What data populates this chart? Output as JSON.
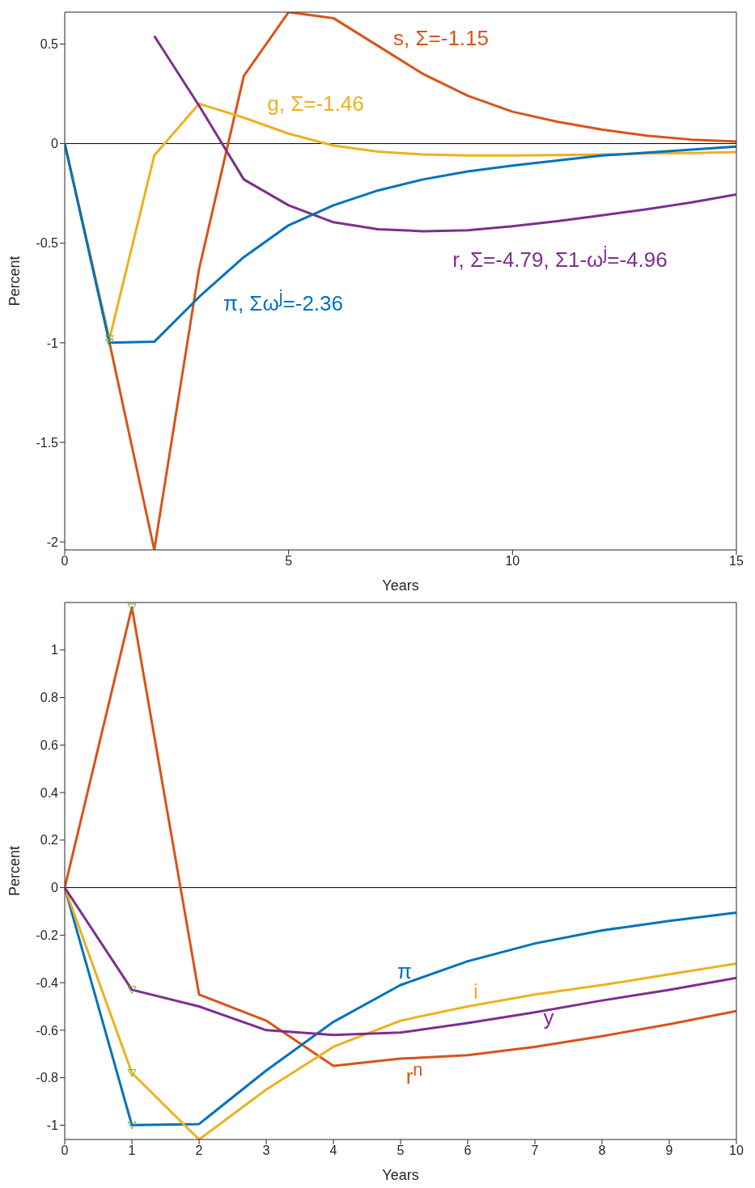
{
  "chart_data": [
    {
      "type": "line",
      "xlabel": "Years",
      "ylabel": "Percent",
      "x": [
        0,
        1,
        2,
        3,
        4,
        5,
        6,
        7,
        8,
        9,
        10,
        11,
        12,
        13,
        14,
        15
      ],
      "xlim": [
        0,
        15
      ],
      "xticks": [
        0,
        5,
        10,
        15
      ],
      "ylim": [
        -2.04,
        0.66
      ],
      "yticks": [
        -2,
        -1.5,
        -1,
        -0.5,
        0,
        0.5
      ],
      "grid": false,
      "legend": false,
      "ref_lines": [
        {
          "axis": "y",
          "value": 0,
          "color": "#000000"
        }
      ],
      "series": [
        {
          "color": "#d95319",
          "values": [
            0,
            -1,
            -2.04,
            -0.63,
            0.34,
            0.66,
            0.63,
            0.49,
            0.35,
            0.24,
            0.16,
            0.11,
            0.07,
            0.04,
            0.02,
            0.01
          ]
        },
        {
          "color": "#edb120",
          "values": [
            0,
            -0.98,
            -0.06,
            0.2,
            0.13,
            0.05,
            -0.01,
            -0.04,
            -0.055,
            -0.06,
            -0.06,
            -0.058,
            -0.055,
            -0.05,
            -0.047,
            -0.042
          ]
        },
        {
          "color": "#7e2f8e",
          "values": [
            null,
            null,
            0.54,
            0.19,
            -0.18,
            -0.31,
            -0.395,
            -0.43,
            -0.44,
            -0.435,
            -0.415,
            -0.39,
            -0.36,
            -0.33,
            -0.295,
            -0.255
          ]
        },
        {
          "color": "#0072bd",
          "values": [
            0,
            -1,
            -0.995,
            -0.77,
            -0.57,
            -0.41,
            -0.31,
            -0.235,
            -0.18,
            -0.14,
            -0.11,
            -0.085,
            -0.06,
            -0.045,
            -0.03,
            -0.015
          ]
        },
        {
          "type": "scatter",
          "marker": "triangle",
          "color": "#77ac30",
          "values": [
            null,
            -0.98,
            null,
            null,
            null,
            null,
            null,
            null,
            null,
            null,
            null,
            null,
            null,
            null,
            null,
            null
          ]
        },
        {
          "type": "scatter",
          "marker": "triangle",
          "color": "#77ac30",
          "values": [
            null,
            -1,
            null,
            null,
            null,
            null,
            null,
            null,
            null,
            null,
            null,
            null,
            null,
            null,
            null,
            null
          ]
        }
      ],
      "annotations": [
        "s, Σ=-1.15",
        "g,  Σ=-1.46",
        "r, Σ=-4.79, Σ1-ω$^{j}$=-4.96",
        "π, Σω$^{j}$=-2.36"
      ]
    },
    {
      "type": "line",
      "xlabel": "Years",
      "ylabel": "Percent",
      "x": [
        0,
        1,
        2,
        3,
        4,
        5,
        6,
        7,
        8,
        9,
        10
      ],
      "xlim": [
        0,
        10
      ],
      "xticks": [
        0,
        1,
        2,
        3,
        4,
        5,
        6,
        7,
        8,
        9,
        10
      ],
      "ylim": [
        -1.06,
        1.2
      ],
      "yticks": [
        -1,
        -0.8,
        -0.6,
        -0.4,
        -0.2,
        0,
        0.2,
        0.4,
        0.6,
        0.8,
        1
      ],
      "grid": false,
      "legend": false,
      "ref_lines": [
        {
          "axis": "y",
          "value": 0,
          "color": "#000000"
        }
      ],
      "series": [
        {
          "color": "#d95319",
          "values": [
            0,
            1.18,
            -0.45,
            -0.56,
            -0.75,
            -0.72,
            -0.705,
            -0.67,
            -0.625,
            -0.575,
            -0.52
          ]
        },
        {
          "color": "#0072bd",
          "values": [
            0,
            -1,
            -0.995,
            -0.77,
            -0.565,
            -0.41,
            -0.31,
            -0.235,
            -0.18,
            -0.14,
            -0.105
          ]
        },
        {
          "color": "#edb120",
          "values": [
            0,
            -0.78,
            -1.06,
            -0.85,
            -0.67,
            -0.56,
            -0.5,
            -0.45,
            -0.41,
            -0.365,
            -0.32
          ]
        },
        {
          "color": "#7e2f8e",
          "values": [
            0,
            -0.43,
            -0.5,
            -0.6,
            -0.62,
            -0.61,
            -0.57,
            -0.525,
            -0.475,
            -0.43,
            -0.38
          ]
        },
        {
          "type": "scatter",
          "marker": "triangle",
          "color": "#77ac30",
          "values": [
            null,
            1.18,
            null,
            null,
            null,
            null,
            null,
            null,
            null,
            null,
            null
          ]
        },
        {
          "type": "scatter",
          "marker": "triangle",
          "color": "#77ac30",
          "values": [
            null,
            -0.78,
            null,
            null,
            null,
            null,
            null,
            null,
            null,
            null,
            null
          ]
        },
        {
          "type": "scatter",
          "marker": "triangle",
          "color": "#77ac30",
          "values": [
            null,
            -0.43,
            null,
            null,
            null,
            null,
            null,
            null,
            null,
            null,
            null
          ]
        },
        {
          "type": "scatter",
          "marker": "triangle",
          "color": "#77ac30",
          "values": [
            null,
            -1,
            null,
            null,
            null,
            null,
            null,
            null,
            null,
            null,
            null
          ]
        }
      ],
      "annotations": [
        "r$^{n}$",
        "π",
        "i",
        "y"
      ]
    }
  ]
}
